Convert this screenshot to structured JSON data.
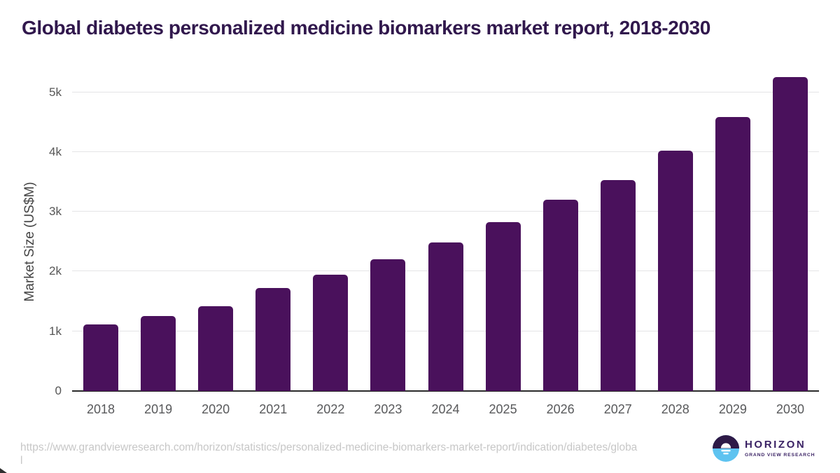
{
  "title": "Global diabetes personalized medicine biomarkers market report, 2018-2030",
  "chart_data": {
    "type": "bar",
    "title": "Global diabetes personalized medicine biomarkers market report, 2018-2030",
    "categories": [
      "2018",
      "2019",
      "2020",
      "2021",
      "2022",
      "2023",
      "2024",
      "2025",
      "2026",
      "2027",
      "2028",
      "2029",
      "2030"
    ],
    "values": [
      1110,
      1255,
      1420,
      1725,
      1950,
      2210,
      2480,
      2830,
      3200,
      3525,
      4025,
      4585,
      5250
    ],
    "xlabel": "",
    "ylabel": "Market Size (US$M)",
    "ylim": [
      0,
      5000
    ],
    "yticks": [
      {
        "value": 0,
        "label": "0"
      },
      {
        "value": 1000,
        "label": "1k"
      },
      {
        "value": 2000,
        "label": "2k"
      },
      {
        "value": 3000,
        "label": "3k"
      },
      {
        "value": 4000,
        "label": "4k"
      },
      {
        "value": 5000,
        "label": "5k"
      }
    ],
    "grid": true,
    "legend": false,
    "bar_color": "#4a115c"
  },
  "footer": {
    "url_lines": [
      "https://www.grandviewresearch.com/horizon/statistics/personalized-medicine-biomarkers-market-report/indication/diabetes/globa",
      "l"
    ],
    "logo": {
      "name": "HORIZON",
      "subtitle": "GRAND VIEW RESEARCH"
    }
  },
  "icons": {
    "logo_icon": "horizon-sunrise-circle"
  },
  "colors": {
    "title_color": "#31184d",
    "bar_color": "#4a115c",
    "grid_color": "#e4e4e6",
    "axis_color": "#2b2b2b",
    "ytick_color": "#565656",
    "ylabel_color": "#454545",
    "xtick_color": "#58595b",
    "url_color": "#c7c7c7",
    "logo_purple": "#3b2365",
    "logo_dark": "#2e1a47",
    "logo_blue": "#5ec3f0"
  }
}
